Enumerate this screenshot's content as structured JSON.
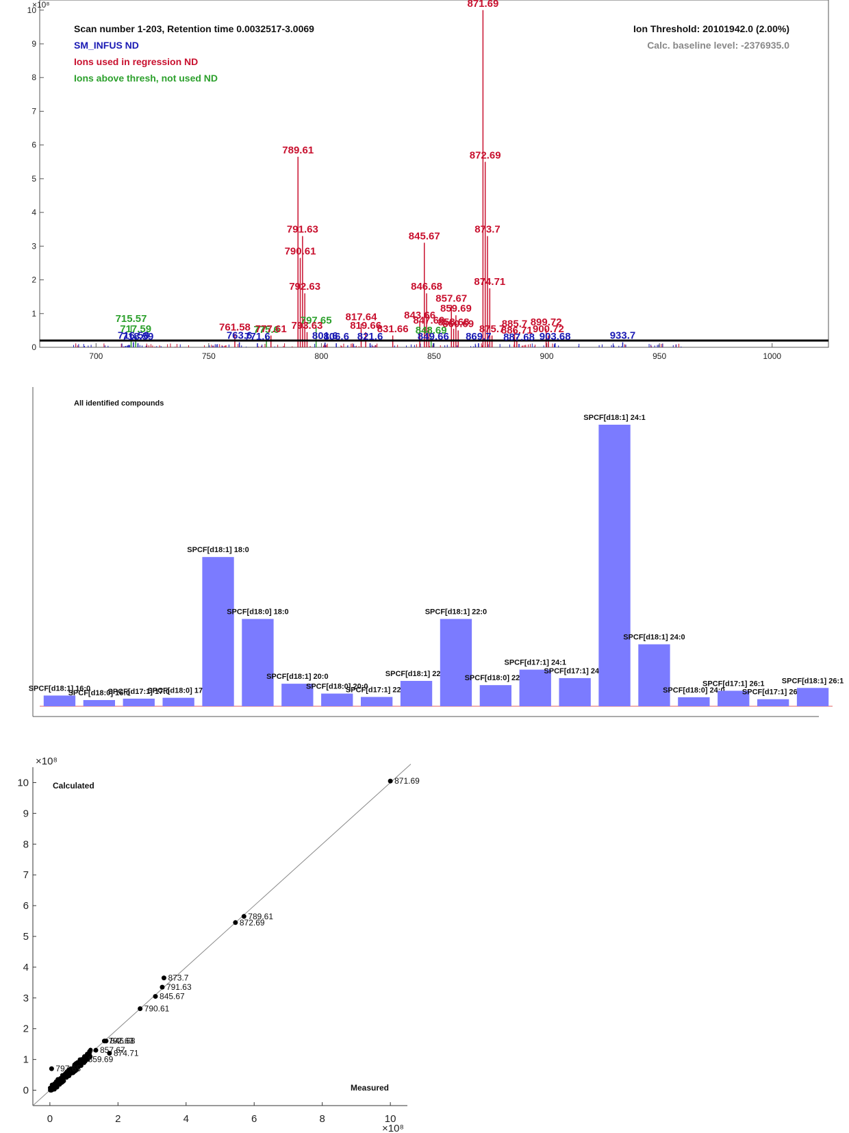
{
  "colors": {
    "regression": "#c8102e",
    "above_thresh": "#2ca02c",
    "infus": "#1a1ab4",
    "bar": "#7b7bff",
    "threshold_line": "#000000",
    "baseline": "#e06060"
  },
  "chart_data": [
    {
      "type": "spectrum",
      "header": {
        "scan": "Scan number 1-203,  Retention time 0.0032517-3.0069",
        "compound": "SM_INFUS  ND",
        "ions_used": "Ions used in regression  ND",
        "ions_above": "Ions above thresh, not used  ND",
        "threshold": "Ion Threshold: 20101942.0 (2.00%)",
        "baseline": "Calc. baseline level: -2376935.0"
      },
      "y_exponent": "×10⁸",
      "xlim": [
        675,
        1025
      ],
      "ylim": [
        0,
        10.3
      ],
      "xticks": [
        700,
        750,
        800,
        850,
        900,
        950,
        1000
      ],
      "yticks": [
        0,
        1,
        2,
        3,
        4,
        5,
        6,
        7,
        8,
        9,
        10
      ],
      "threshold": 0.201,
      "peaks_regression": [
        {
          "mz": 871.69,
          "y": 10.0,
          "label": "871.69"
        },
        {
          "mz": 872.69,
          "y": 5.5,
          "label": "872.69"
        },
        {
          "mz": 789.61,
          "y": 5.65,
          "label": "789.61"
        },
        {
          "mz": 873.7,
          "y": 3.3,
          "label": "873.7"
        },
        {
          "mz": 791.63,
          "y": 3.3,
          "label": "791.63"
        },
        {
          "mz": 845.67,
          "y": 3.1,
          "label": "845.67"
        },
        {
          "mz": 790.61,
          "y": 2.65,
          "label": "790.61"
        },
        {
          "mz": 874.71,
          "y": 1.75,
          "label": "874.71"
        },
        {
          "mz": 792.63,
          "y": 1.6,
          "label": "792.63"
        },
        {
          "mz": 846.68,
          "y": 1.6,
          "label": "846.68"
        },
        {
          "mz": 857.67,
          "y": 1.25,
          "label": "857.67"
        },
        {
          "mz": 859.69,
          "y": 0.95,
          "label": "859.69"
        },
        {
          "mz": 817.64,
          "y": 0.7,
          "label": "817.64"
        },
        {
          "mz": 843.66,
          "y": 0.75,
          "label": "843.66"
        },
        {
          "mz": 847.69,
          "y": 0.6,
          "label": "847.69"
        },
        {
          "mz": 899.72,
          "y": 0.55,
          "label": "899.72"
        },
        {
          "mz": 885.7,
          "y": 0.5,
          "label": "885.7"
        },
        {
          "mz": 858.68,
          "y": 0.55,
          "label": "858.68"
        },
        {
          "mz": 860.69,
          "y": 0.5,
          "label": "860.69"
        },
        {
          "mz": 819.66,
          "y": 0.45,
          "label": "819.66"
        },
        {
          "mz": 793.63,
          "y": 0.45,
          "label": "793.63"
        },
        {
          "mz": 761.58,
          "y": 0.4,
          "label": "761.58"
        },
        {
          "mz": 831.66,
          "y": 0.35,
          "label": "831.66"
        },
        {
          "mz": 900.72,
          "y": 0.35,
          "label": "900.72"
        },
        {
          "mz": 777.61,
          "y": 0.35,
          "label": "777.61"
        },
        {
          "mz": 886.71,
          "y": 0.3,
          "label": "886.71"
        },
        {
          "mz": 875.7,
          "y": 0.35,
          "label": "875.7"
        }
      ],
      "peaks_above": [
        {
          "mz": 715.57,
          "y": 0.65,
          "label": "715.57"
        },
        {
          "mz": 717.59,
          "y": 0.35,
          "label": "717.59"
        },
        {
          "mz": 797.65,
          "y": 0.6,
          "label": "797.65"
        },
        {
          "mz": 775.6,
          "y": 0.32,
          "label": "775.6"
        },
        {
          "mz": 848.69,
          "y": 0.3,
          "label": "848.69"
        }
      ],
      "peaks_infus": [
        {
          "mz": 716.58,
          "y": 0.15,
          "label": "716.58"
        },
        {
          "mz": 718.59,
          "y": 0.12,
          "label": "718.59"
        },
        {
          "mz": 763.6,
          "y": 0.15,
          "label": "763.6"
        },
        {
          "mz": 771.6,
          "y": 0.12,
          "label": "771.6"
        },
        {
          "mz": 801.6,
          "y": 0.14,
          "label": "801.6"
        },
        {
          "mz": 806.6,
          "y": 0.12,
          "label": "806.6"
        },
        {
          "mz": 821.6,
          "y": 0.12,
          "label": "821.6"
        },
        {
          "mz": 849.66,
          "y": 0.12,
          "label": "849.66"
        },
        {
          "mz": 869.7,
          "y": 0.12,
          "label": "869.7"
        },
        {
          "mz": 887.68,
          "y": 0.1,
          "label": "887.68"
        },
        {
          "mz": 903.68,
          "y": 0.12,
          "label": "903.68"
        },
        {
          "mz": 933.7,
          "y": 0.15,
          "label": "933.7"
        }
      ]
    },
    {
      "type": "bar",
      "title": "All identified compounds",
      "ylim": [
        0,
        10
      ],
      "categories": [
        "SPCF[d18:1] 16:0",
        "SPCF[d18:0] 16:0",
        "SPCF[d17:1] 17:0",
        "SPCF[d18:0] 17:0",
        "SPCF[d18:1] 18:0",
        "SPCF[d18:0] 18:0",
        "SPCF[d18:1] 20:0",
        "SPCF[d18:0] 20:0",
        "SPCF[d17:1] 22:0",
        "SPCF[d18:1] 22:1",
        "SPCF[d18:1] 22:0",
        "SPCF[d18:0] 22:0",
        "SPCF[d17:1] 24:1",
        "SPCF[d17:1] 24:0",
        "SPCF[d18:1] 24:1",
        "SPCF[d18:1] 24:0",
        "SPCF[d18:0] 24:0",
        "SPCF[d17:1] 26:1",
        "SPCF[d17:1] 26:0",
        "SPCF[d18:1] 26:1"
      ],
      "values": [
        0.38,
        0.22,
        0.27,
        0.3,
        5.3,
        3.1,
        0.8,
        0.45,
        0.33,
        0.9,
        3.1,
        0.75,
        1.3,
        1.0,
        10.0,
        2.2,
        0.32,
        0.55,
        0.25,
        0.65
      ]
    },
    {
      "type": "scatter",
      "xlabel": "Measured",
      "ylabel": "Calculated",
      "x_exponent": "×10⁸",
      "y_exponent": "×10⁸",
      "xlim": [
        -0.5,
        10.5
      ],
      "ylim": [
        -0.5,
        10.5
      ],
      "xticks": [
        0,
        2,
        4,
        6,
        8,
        10
      ],
      "yticks": [
        0,
        1,
        2,
        3,
        4,
        5,
        6,
        7,
        8,
        9,
        10
      ],
      "labeled_points": [
        {
          "x": 10.0,
          "y": 10.05,
          "label": "871.69"
        },
        {
          "x": 5.7,
          "y": 5.65,
          "label": "789.61"
        },
        {
          "x": 5.45,
          "y": 5.45,
          "label": "872.69"
        },
        {
          "x": 3.35,
          "y": 3.65,
          "label": "873.7"
        },
        {
          "x": 3.3,
          "y": 3.35,
          "label": "791.63"
        },
        {
          "x": 3.1,
          "y": 3.05,
          "label": "845.67"
        },
        {
          "x": 2.65,
          "y": 2.65,
          "label": "790.61"
        },
        {
          "x": 1.65,
          "y": 1.6,
          "label": "846.68"
        },
        {
          "x": 1.6,
          "y": 1.6,
          "label": "792.63"
        },
        {
          "x": 1.35,
          "y": 1.3,
          "label": "857.67"
        },
        {
          "x": 1.75,
          "y": 1.2,
          "label": "874.71"
        },
        {
          "x": 1.0,
          "y": 1.0,
          "label": "859.69"
        },
        {
          "x": 0.05,
          "y": 0.7,
          "label": "797.65"
        }
      ]
    }
  ]
}
